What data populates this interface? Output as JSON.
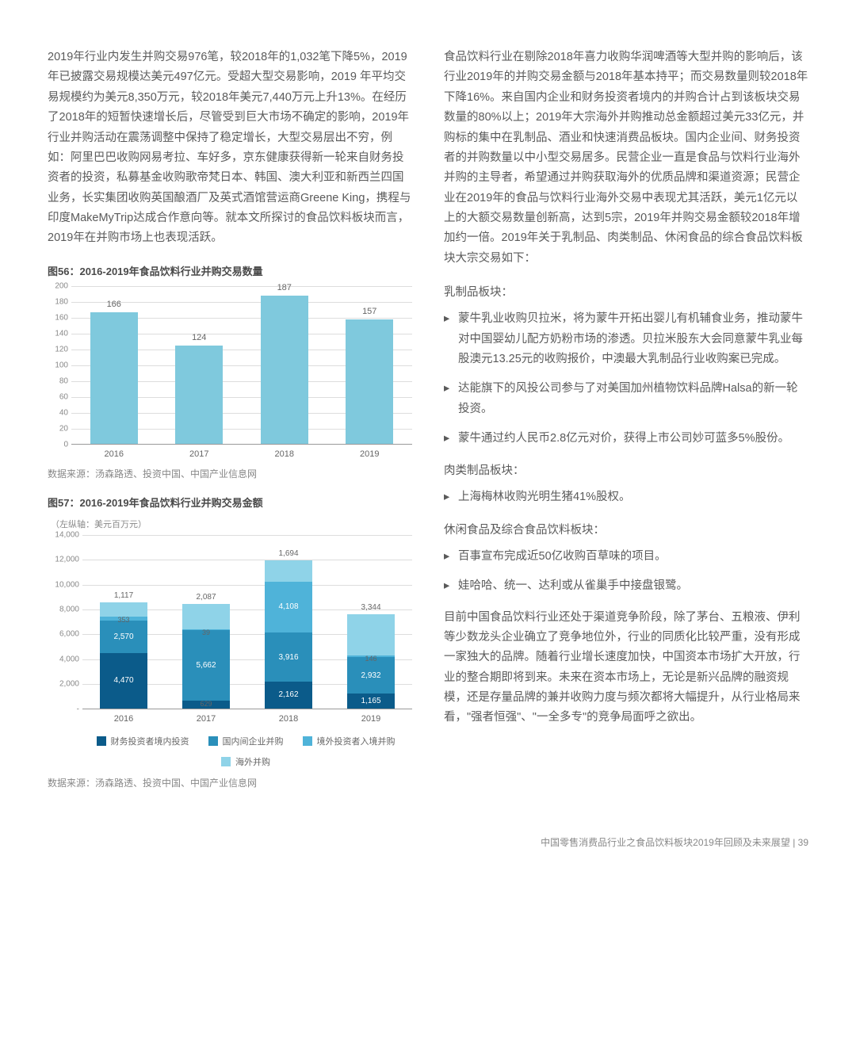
{
  "left": {
    "para1": "2019年行业内发生并购交易976笔，较2018年的1,032笔下降5%，2019年已披露交易规模达美元497亿元。受超大型交易影响，2019 年平均交易规模约为美元8,350万元，较2018年美元7,440万元上升13%。在经历了2018年的短暂快速增长后，尽管受到巨大市场不确定的影响，2019年行业并购活动在震荡调整中保持了稳定增长，大型交易层出不穷，例如：阿里巴巴收购网易考拉、车好多，京东健康获得新一轮来自财务投资者的投资，私募基金收购歌帝梵日本、韩国、澳大利亚和新西兰四国业务，长实集团收购英国酿酒厂及英式酒馆营运商Greene King，携程与印度MakeMyTrip达成合作意向等。就本文所探讨的食品饮料板块而言，2019年在并购市场上也表现活跃。"
  },
  "fig56": {
    "title": "图56：2016-2019年食品饮料行业并购交易数量",
    "type": "bar",
    "categories": [
      "2016",
      "2017",
      "2018",
      "2019"
    ],
    "values": [
      166,
      124,
      187,
      157
    ],
    "bar_color": "#7fc9dd",
    "ylim": [
      0,
      200
    ],
    "ytick_step": 20,
    "grid_color": "#dddddd",
    "axis_color": "#999999",
    "label_fontsize": 11,
    "source": "数据来源：汤森路透、投资中国、中国产业信息网"
  },
  "fig57": {
    "title": "图57：2016-2019年食品饮料行业并购交易金额",
    "axis_note": "（左纵轴：美元百万元）",
    "type": "stacked-bar",
    "categories": [
      "2016",
      "2017",
      "2018",
      "2019"
    ],
    "series": [
      {
        "name": "财务投资者境内投资",
        "color": "#0b5b8a",
        "values": [
          4470,
          629,
          2162,
          1165
        ]
      },
      {
        "name": "国内间企业并购",
        "color": "#2a8fba",
        "values": [
          2570,
          5662,
          3916,
          2932
        ]
      },
      {
        "name": "境外投资者入境并购",
        "color": "#4fb3d9",
        "values": [
          353,
          39,
          4108,
          146
        ]
      },
      {
        "name": "海外并购",
        "color": "#8fd3e8",
        "values": [
          1117,
          2087,
          1694,
          3344
        ]
      }
    ],
    "top_labels": [
      "1,117",
      "2,087",
      "1,694",
      "3,344"
    ],
    "seg_labels": [
      [
        "4,470",
        "2,570",
        "353",
        "1,117"
      ],
      [
        "629",
        "5,662",
        "39",
        "2,087"
      ],
      [
        "2,162",
        "3,916",
        "4,108",
        "1,694"
      ],
      [
        "1,165",
        "2,932",
        "146",
        "3,344"
      ]
    ],
    "ylim": [
      0,
      14000
    ],
    "yticks": [
      "-",
      "2,000",
      "4,000",
      "6,000",
      "8,000",
      "10,000",
      "12,000",
      "14,000"
    ],
    "grid_color": "#dddddd",
    "source": "数据来源：汤森路透、投资中国、中国产业信息网"
  },
  "right": {
    "para1": "食品饮料行业在剔除2018年喜力收购华润啤酒等大型并购的影响后，该行业2019年的并购交易金额与2018年基本持平；而交易数量则较2018年下降16%。来自国内企业和财务投资者境内的并购合计占到该板块交易数量的80%以上；2019年大宗海外并购推动总金额超过美元33亿元，并购标的集中在乳制品、酒业和快速消费品板块。国内企业间、财务投资者的并购数量以中小型交易居多。民营企业一直是食品与饮料行业海外并购的主导者，希望通过并购获取海外的优质品牌和渠道资源；民营企业在2019年的食品与饮料行业海外交易中表现尤其活跃，美元1亿元以上的大额交易数量创新高，达到5宗，2019年并购交易金额较2018年增加约一倍。2019年关于乳制品、肉类制品、休闲食品的综合食品饮料板块大宗交易如下：",
    "sec1_h": "乳制品板块：",
    "sec1_items": [
      "蒙牛乳业收购贝拉米，将为蒙牛开拓出婴儿有机辅食业务，推动蒙牛对中国婴幼儿配方奶粉市场的渗透。贝拉米股东大会同意蒙牛乳业每股澳元13.25元的收购报价，中澳最大乳制品行业收购案已完成。",
      "达能旗下的风投公司参与了对美国加州植物饮料品牌Halsa的新一轮投资。",
      "蒙牛通过约人民币2.8亿元对价，获得上市公司妙可蓝多5%股份。"
    ],
    "sec2_h": "肉类制品板块：",
    "sec2_items": [
      "上海梅林收购光明生猪41%股权。"
    ],
    "sec3_h": "休闲食品及综合食品饮料板块：",
    "sec3_items": [
      "百事宣布完成近50亿收购百草味的项目。",
      "娃哈哈、统一、达利或从雀巢手中接盘银鹭。"
    ],
    "para2": "目前中国食品饮料行业还处于渠道竞争阶段，除了茅台、五粮液、伊利等少数龙头企业确立了竞争地位外，行业的同质化比较严重，没有形成一家独大的品牌。随着行业增长速度加快，中国资本市场扩大开放，行业的整合期即将到来。未来在资本市场上，无论是新兴品牌的融资规模，还是存量品牌的兼并收购力度与频次都将大幅提升，从行业格局来看，\"强者恒强\"、\"一全多专\"的竞争局面呼之欲出。"
  },
  "footer": {
    "text": "中国零售消费品行业之食品饮料板块2019年回顾及未来展望",
    "page": "39"
  }
}
